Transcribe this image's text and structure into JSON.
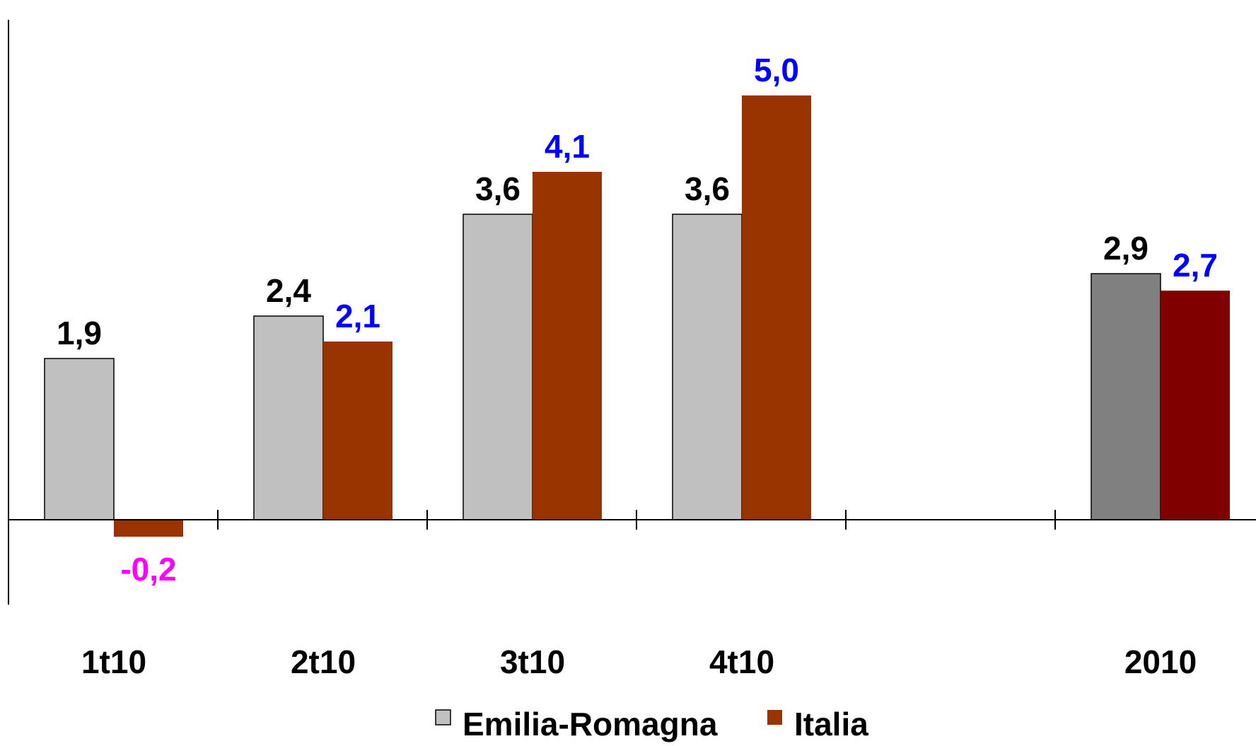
{
  "chart_data": {
    "type": "bar",
    "title": "",
    "xlabel": "",
    "ylabel": "",
    "categories": [
      "1t10",
      "2t10",
      "3t10",
      "4t10",
      "",
      "2010"
    ],
    "ylim": [
      -1.2,
      6.0
    ],
    "grid": false,
    "legend_position": "bottom-center",
    "series": [
      {
        "name": "Emilia-Romagna",
        "values": [
          1.9,
          2.4,
          3.6,
          3.6,
          null,
          2.9
        ],
        "labels": [
          "1,9",
          "2,4",
          "3,6",
          "3,6",
          "",
          "2,9"
        ],
        "color": "#c0c0c0",
        "highlight_color": "#808080"
      },
      {
        "name": "Italia",
        "values": [
          -0.2,
          2.1,
          4.1,
          5.0,
          null,
          2.7
        ],
        "labels": [
          "-0,2",
          "2,1",
          "4,1",
          "5,0",
          "",
          "2,7"
        ],
        "color": "#993300",
        "highlight_color": "#800000"
      }
    ],
    "label_colors": {
      "series_1": "#000000",
      "series_2_positive": "#0000ff",
      "series_2_negative": "#ff00ff"
    },
    "highlighted_category": "2010"
  }
}
